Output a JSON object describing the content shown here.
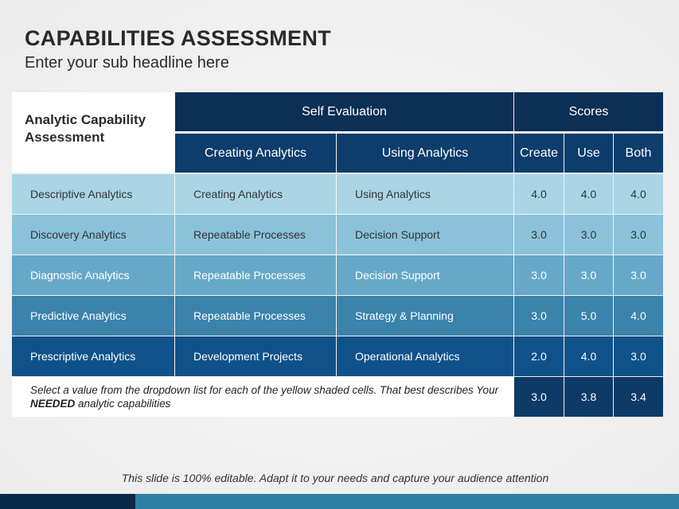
{
  "title": "CAPABILITIES ASSESSMENT",
  "subtitle": "Enter your sub headline here",
  "table": {
    "corner": "Analytic Capability Assessment",
    "group_self": "Self Evaluation",
    "group_scores": "Scores",
    "columns": [
      "Creating Analytics",
      "Using Analytics",
      "Create",
      "Use",
      "Both"
    ],
    "rows": [
      {
        "name": "Descriptive Analytics",
        "creating": "Creating Analytics",
        "using": "Using Analytics",
        "create": "4.0",
        "use": "4.0",
        "both": "4.0",
        "color": "#a9d5e5",
        "text": "#333333"
      },
      {
        "name": "Discovery Analytics",
        "creating": "Repeatable Processes",
        "using": "Decision Support",
        "create": "3.0",
        "use": "3.0",
        "both": "3.0",
        "color": "#8bc2d9",
        "text": "#333333"
      },
      {
        "name": "Diagnostic Analytics",
        "creating": "Repeatable Processes",
        "using": "Decision Support",
        "create": "3.0",
        "use": "3.0",
        "both": "3.0",
        "color": "#67a8c8",
        "text": "#ffffff"
      },
      {
        "name": "Predictive Analytics",
        "creating": "Repeatable Processes",
        "using": "Strategy & Planning",
        "create": "3.0",
        "use": "5.0",
        "both": "4.0",
        "color": "#3a83ab",
        "text": "#ffffff"
      },
      {
        "name": "Prescriptive Analytics",
        "creating": "Development Projects",
        "using": "Operational Analytics",
        "create": "2.0",
        "use": "4.0",
        "both": "3.0",
        "color": "#0f528a",
        "text": "#ffffff"
      }
    ],
    "note_pre": "Select a value from the dropdown list for each of the yellow shaded cells. That best describes Your ",
    "note_bold": "NEEDED",
    "note_post": " analytic capabilities",
    "totals": {
      "create": "3.0",
      "use": "3.8",
      "both": "3.4"
    }
  },
  "footer": "This slide is 100% editable. Adapt it to your needs and capture your audience attention",
  "colors": {
    "header_dark": "#0b2f55",
    "header": "#0d3d6c",
    "bar_dark": "#0b2a4a",
    "bar": "#2f7ea3"
  }
}
